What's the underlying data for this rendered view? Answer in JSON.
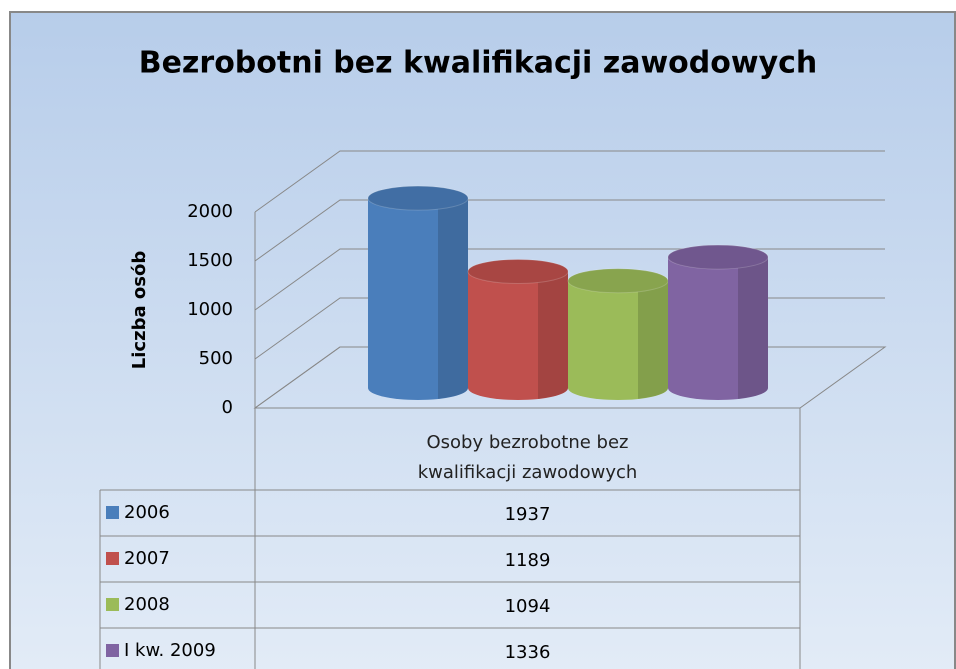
{
  "chart_data": {
    "type": "bar3d",
    "title": "Bezrobotni bez kwalifikacji zawodowych",
    "y_label": "Liczba osób",
    "categories": [
      "Osoby  bezrobotne bez kwalifikacji zawodowych"
    ],
    "series": [
      {
        "name": "2006",
        "color": "#4a7ebb",
        "values": [
          1937
        ]
      },
      {
        "name": "2007",
        "color": "#c0504d",
        "values": [
          1189
        ]
      },
      {
        "name": "2008",
        "color": "#9bbb59",
        "values": [
          1094
        ]
      },
      {
        "name": "I kw. 2009",
        "color": "#8064a2",
        "values": [
          1336
        ]
      }
    ],
    "ylim": [
      0,
      2000
    ],
    "yticks": [
      0,
      500,
      1000,
      1500,
      2000
    ],
    "grid": true
  }
}
